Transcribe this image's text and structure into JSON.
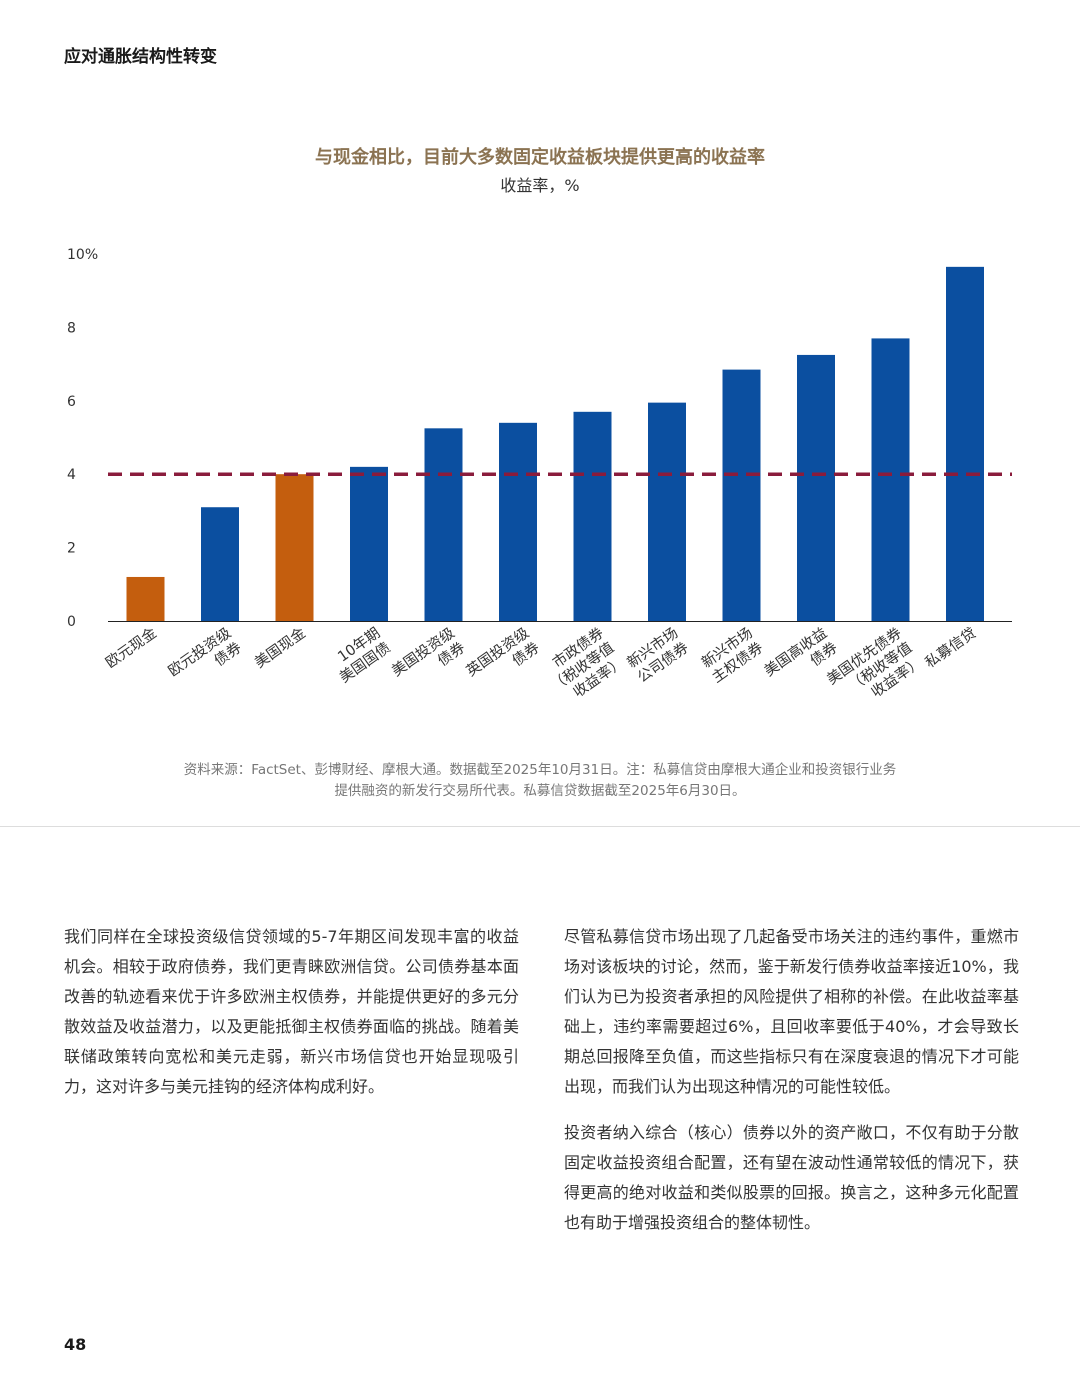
{
  "header": {
    "title": "应对通胀结构性转变"
  },
  "chart_data": {
    "type": "bar",
    "title": "与现金相比，目前大多数固定收益板块提供更高的收益率",
    "subtitle": "收益率，%",
    "categories": [
      [
        "欧元现金"
      ],
      [
        "欧元投资级",
        "债券"
      ],
      [
        "美国现金"
      ],
      [
        "10年期",
        "美国国债"
      ],
      [
        "美国投资级",
        "债券"
      ],
      [
        "英国投资级",
        "债券"
      ],
      [
        "市政债券",
        "（税收等值",
        "收益率）"
      ],
      [
        "新兴市场",
        "公司债券"
      ],
      [
        "新兴市场",
        "主权债券"
      ],
      [
        "美国高收益",
        "债券"
      ],
      [
        "美国优先债券",
        "（税收等值",
        "收益率）"
      ],
      [
        "私募信贷"
      ]
    ],
    "values": [
      1.2,
      3.1,
      4.0,
      4.2,
      5.25,
      5.4,
      5.7,
      5.95,
      6.85,
      7.25,
      7.7,
      9.65
    ],
    "bar_colors": [
      "#c45e0e",
      "#0b4fa0",
      "#c45e0e",
      "#0b4fa0",
      "#0b4fa0",
      "#0b4fa0",
      "#0b4fa0",
      "#0b4fa0",
      "#0b4fa0",
      "#0b4fa0",
      "#0b4fa0",
      "#0b4fa0"
    ],
    "reference_line": {
      "value": 4.0,
      "color": "#8a1c3c",
      "style": "dashed"
    },
    "ylim": [
      0,
      10
    ],
    "yticks": [
      0,
      2,
      4,
      6,
      8,
      10
    ],
    "ytick_labels": [
      "0",
      "2",
      "4",
      "6",
      "8",
      "10%"
    ],
    "grid": false,
    "legend": "none"
  },
  "source_note": {
    "line1": "资料来源：FactSet、彭博财经、摩根大通。数据截至2025年10月31日。注：私募信贷由摩根大通企业和投资银行业务",
    "line2": "提供融资的新发行交易所代表。私募信贷数据截至2025年6月30日。"
  },
  "body": {
    "left_paragraph": "我们同样在全球投资级信贷领域的5-7年期区间发现丰富的收益机会。相较于政府债券，我们更青睐欧洲信贷。公司债券基本面改善的轨迹看来优于许多欧洲主权债券，并能提供更好的多元分散效益及收益潜力，以及更能抵御主权债券面临的挑战。随着美联储政策转向宽松和美元走弱，新兴市场信贷也开始显现吸引力，这对许多与美元挂钩的经济体构成利好。",
    "right_paragraph_1": "尽管私募信贷市场出现了几起备受市场关注的违约事件，重燃市场对该板块的讨论，然而，鉴于新发行债券收益率接近10%，我们认为已为投资者承担的风险提供了相称的补偿。在此收益率基础上，违约率需要超过6%，且回收率要低于40%，才会导致长期总回报降至负值，而这些指标只有在深度衰退的情况下才可能出现，而我们认为出现这种情况的可能性较低。",
    "right_paragraph_2": "投资者纳入综合（核心）债券以外的资产敞口，不仅有助于分散固定收益投资组合配置，还有望在波动性通常较低的情况下，获得更高的绝对收益和类似股票的回报。换言之，这种多元化配置也有助于增强投资组合的整体韧性。"
  },
  "footer": {
    "page_number": "48"
  }
}
